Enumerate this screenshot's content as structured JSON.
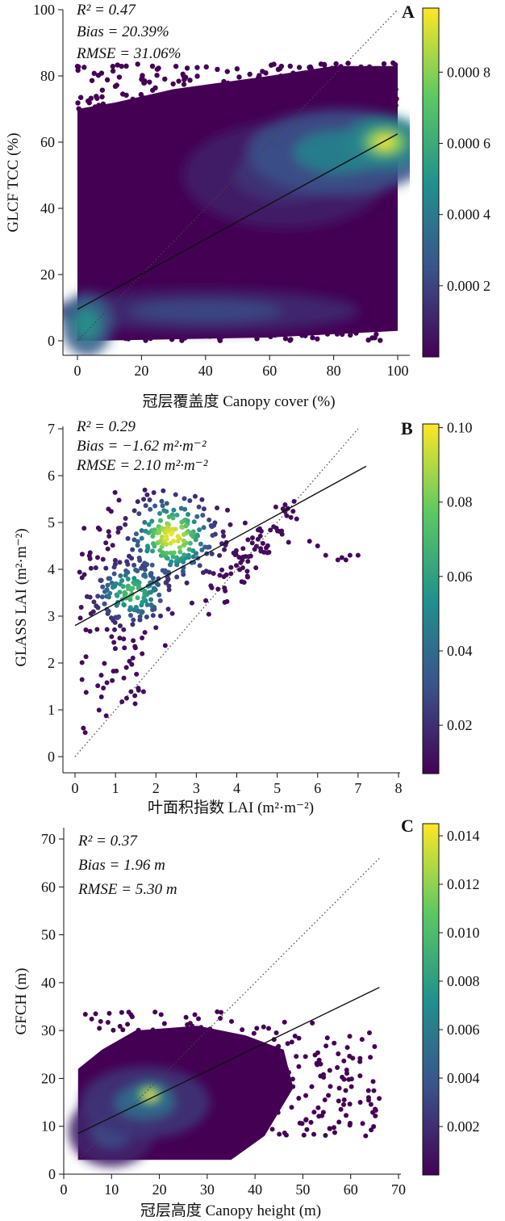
{
  "colormap": [
    "#440154",
    "#3b528b",
    "#21918c",
    "#5ec962",
    "#fde725"
  ],
  "chart_data": [
    {
      "panel": "A",
      "type": "scatter",
      "rendering": "density-hexbin",
      "stats": [
        "R² = 0.47",
        "Bias = 20.39%",
        "RMSE = 31.06%"
      ],
      "xlabel": "冠层覆盖度 Canopy cover (%)",
      "ylabel": "GLCF TCC (%)",
      "xlim": [
        0,
        100
      ],
      "ylim": [
        0,
        100
      ],
      "xticks": [
        "0",
        "20",
        "40",
        "60",
        "80",
        "100"
      ],
      "yticks": [
        "0",
        "20",
        "40",
        "60",
        "80",
        "100"
      ],
      "colorbar_range": [
        0,
        0.00098
      ],
      "colorbar_ticks": [
        "0.000 2",
        "0.000 4",
        "0.000 6",
        "0.000 8"
      ],
      "fit_line": [
        [
          0,
          9.5
        ],
        [
          100,
          62.5
        ]
      ],
      "one_to_one": [
        [
          0,
          0
        ],
        [
          100,
          100
        ]
      ],
      "hotspots": [
        {
          "x": 96,
          "y": 60,
          "sx": 8,
          "sy": 5,
          "level": 1.0
        },
        {
          "x": 82,
          "y": 57,
          "sx": 18,
          "sy": 8,
          "level": 0.55
        },
        {
          "x": 3,
          "y": 5,
          "sx": 5,
          "sy": 6,
          "level": 0.65
        },
        {
          "x": 40,
          "y": 9,
          "sx": 30,
          "sy": 4,
          "level": 0.28
        },
        {
          "x": 65,
          "y": 50,
          "sx": 20,
          "sy": 10,
          "level": 0.2
        }
      ]
    },
    {
      "panel": "B",
      "type": "scatter",
      "rendering": "density-points",
      "stats": [
        "R² = 0.29",
        "Bias = −1.62 m²·m⁻²",
        "RMSE = 2.10 m²·m⁻²"
      ],
      "xlabel": "叶面积指数 LAI (m²·m⁻²)",
      "ylabel": "GLASS LAI (m²·m⁻²)",
      "xlim": [
        0,
        8
      ],
      "ylim": [
        0,
        7
      ],
      "xticks": [
        "0",
        "1",
        "2",
        "3",
        "4",
        "5",
        "6",
        "7",
        "8"
      ],
      "yticks": [
        "0",
        "1",
        "2",
        "3",
        "4",
        "5",
        "6",
        "7"
      ],
      "colorbar_range": [
        0.007,
        0.101
      ],
      "colorbar_ticks": [
        "0.02",
        "0.04",
        "0.06",
        "0.08",
        "0.10"
      ],
      "fit_line": [
        [
          0,
          2.8
        ],
        [
          7.2,
          6.2
        ]
      ],
      "one_to_one": [
        [
          0,
          0
        ],
        [
          7,
          7
        ]
      ],
      "hotspots": [
        {
          "x": 2.4,
          "y": 4.7,
          "sx": 0.55,
          "sy": 0.45,
          "level": 1.0
        },
        {
          "x": 1.4,
          "y": 3.5,
          "sx": 0.5,
          "sy": 0.35,
          "level": 0.7
        }
      ]
    },
    {
      "panel": "C",
      "type": "scatter",
      "rendering": "density-hexbin",
      "stats": [
        "R² = 0.37",
        "Bias = 1.96 m",
        "RMSE = 5.30 m"
      ],
      "xlabel": "冠层高度 Canopy height (m)",
      "ylabel": "GFCH (m)",
      "xlim": [
        0,
        70
      ],
      "ylim": [
        0,
        70
      ],
      "xticks": [
        "0",
        "10",
        "20",
        "30",
        "40",
        "50",
        "60",
        "70"
      ],
      "yticks": [
        "0",
        "10",
        "20",
        "30",
        "40",
        "50",
        "60",
        "70"
      ],
      "colorbar_range": [
        0,
        0.0145
      ],
      "colorbar_ticks": [
        "0.002",
        "0.004",
        "0.006",
        "0.008",
        "0.010",
        "0.012",
        "0.014"
      ],
      "fit_line": [
        [
          3,
          8.5
        ],
        [
          66,
          39
        ]
      ],
      "one_to_one": [
        [
          3,
          3
        ],
        [
          66,
          66
        ]
      ],
      "hotspots": [
        {
          "x": 18,
          "y": 16.5,
          "sx": 3,
          "sy": 2,
          "level": 1.0
        },
        {
          "x": 17,
          "y": 15,
          "sx": 9,
          "sy": 5,
          "level": 0.45
        },
        {
          "x": 10,
          "y": 9,
          "sx": 6,
          "sy": 5,
          "level": 0.3
        }
      ]
    }
  ]
}
